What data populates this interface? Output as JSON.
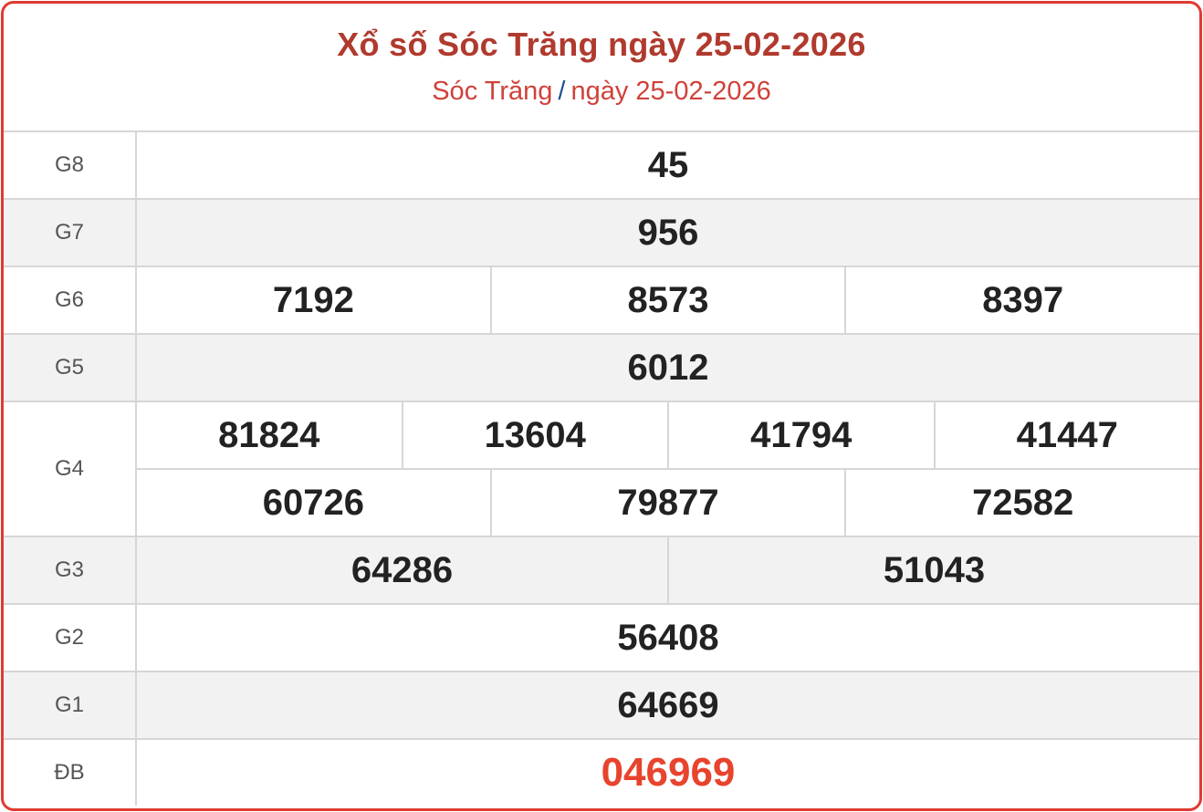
{
  "header": {
    "title": "Xổ số Sóc Trăng ngày 25-02-2026",
    "breadcrumb": {
      "province": "Sóc Trăng",
      "separator": "/",
      "date": "ngày 25-02-2026"
    }
  },
  "colors": {
    "accent": "#e03a32",
    "title": "#b03a2e",
    "special": "#e8432d"
  },
  "prizes": [
    {
      "label": "G8",
      "rows": [
        [
          "45"
        ]
      ]
    },
    {
      "label": "G7",
      "rows": [
        [
          "956"
        ]
      ]
    },
    {
      "label": "G6",
      "rows": [
        [
          "7192",
          "8573",
          "8397"
        ]
      ]
    },
    {
      "label": "G5",
      "rows": [
        [
          "6012"
        ]
      ]
    },
    {
      "label": "G4",
      "rows": [
        [
          "81824",
          "13604",
          "41794",
          "41447"
        ],
        [
          "60726",
          "79877",
          "72582"
        ]
      ]
    },
    {
      "label": "G3",
      "rows": [
        [
          "64286",
          "51043"
        ]
      ]
    },
    {
      "label": "G2",
      "rows": [
        [
          "56408"
        ]
      ]
    },
    {
      "label": "G1",
      "rows": [
        [
          "64669"
        ]
      ]
    },
    {
      "label": "ĐB",
      "rows": [
        [
          "046969"
        ]
      ],
      "special": true
    }
  ]
}
